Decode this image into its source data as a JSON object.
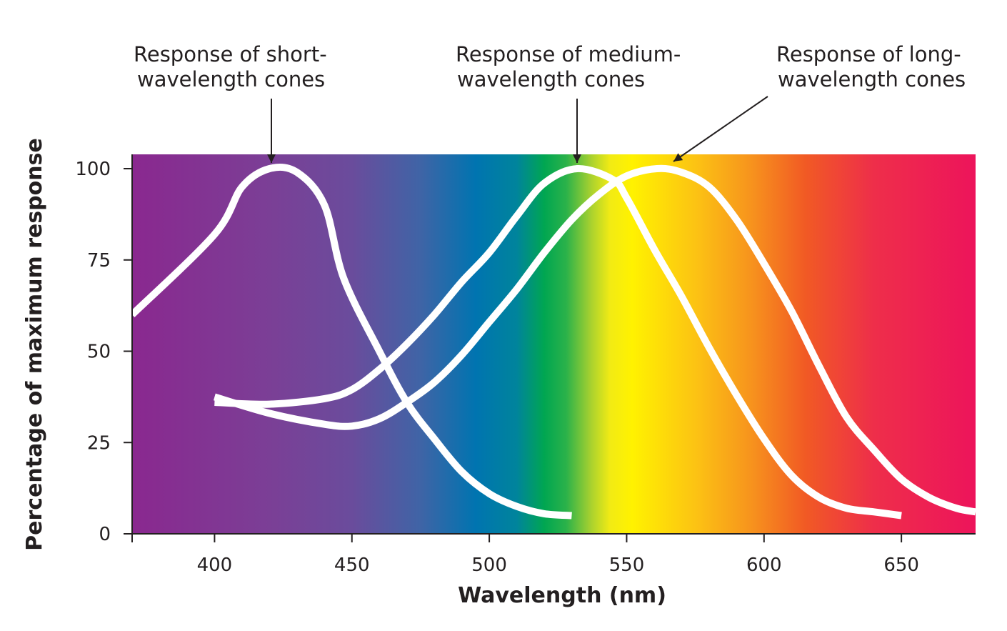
{
  "chart_data": {
    "type": "line",
    "xlabel": "Wavelength (nm)",
    "ylabel": "Percentage of maximum response",
    "xlim": [
      370,
      677
    ],
    "ylim": [
      0,
      100
    ],
    "x_ticks": [
      400,
      450,
      500,
      550,
      600,
      650
    ],
    "y_ticks": [
      0,
      25,
      50,
      75,
      100
    ],
    "grid": false,
    "background": "visible-spectrum color gradient",
    "spectrum_stops": [
      {
        "nm": 370,
        "color": "#8a288f"
      },
      {
        "nm": 420,
        "color": "#7b3f96"
      },
      {
        "nm": 450,
        "color": "#6a4c9c"
      },
      {
        "nm": 475,
        "color": "#3f64a6"
      },
      {
        "nm": 495,
        "color": "#0074b0"
      },
      {
        "nm": 510,
        "color": "#00849c"
      },
      {
        "nm": 520,
        "color": "#00a651"
      },
      {
        "nm": 528,
        "color": "#2bb24a"
      },
      {
        "nm": 537,
        "color": "#a8d12f"
      },
      {
        "nm": 544,
        "color": "#f2eb14"
      },
      {
        "nm": 552,
        "color": "#fff200"
      },
      {
        "nm": 575,
        "color": "#fcc313"
      },
      {
        "nm": 595,
        "color": "#f7941d"
      },
      {
        "nm": 615,
        "color": "#f15a24"
      },
      {
        "nm": 640,
        "color": "#ee2e4a"
      },
      {
        "nm": 677,
        "color": "#ed145b"
      }
    ],
    "series": [
      {
        "name": "Short-wavelength cones",
        "label_lines": [
          "Response of short-",
          "wavelength cones"
        ],
        "peak_nm": 420,
        "points": [
          [
            370,
            60
          ],
          [
            400,
            82
          ],
          [
            410,
            95
          ],
          [
            420,
            100
          ],
          [
            430,
            99
          ],
          [
            440,
            90
          ],
          [
            447,
            70
          ],
          [
            460,
            50
          ],
          [
            470,
            36
          ],
          [
            480,
            26
          ],
          [
            490,
            17
          ],
          [
            500,
            11
          ],
          [
            510,
            7.5
          ],
          [
            520,
            5.5
          ],
          [
            530,
            5
          ]
        ]
      },
      {
        "name": "Medium-wavelength cones",
        "label_lines": [
          "Response of medium-",
          "wavelength cones"
        ],
        "peak_nm": 532,
        "points": [
          [
            400,
            36
          ],
          [
            420,
            35.5
          ],
          [
            440,
            37
          ],
          [
            450,
            39.5
          ],
          [
            460,
            45
          ],
          [
            470,
            52
          ],
          [
            480,
            60
          ],
          [
            490,
            69
          ],
          [
            500,
            77
          ],
          [
            510,
            87
          ],
          [
            520,
            96
          ],
          [
            532,
            100
          ],
          [
            545,
            97
          ],
          [
            550,
            92
          ],
          [
            560,
            78
          ],
          [
            570,
            65
          ],
          [
            580,
            51
          ],
          [
            590,
            38
          ],
          [
            600,
            26
          ],
          [
            610,
            16
          ],
          [
            620,
            10
          ],
          [
            630,
            7
          ],
          [
            640,
            6
          ],
          [
            650,
            5
          ]
        ]
      },
      {
        "name": "Long-wavelength cones",
        "label_lines": [
          "Response of long-",
          "wavelength cones"
        ],
        "peak_nm": 561,
        "points": [
          [
            400,
            37.5
          ],
          [
            420,
            33
          ],
          [
            440,
            30
          ],
          [
            450,
            29.5
          ],
          [
            460,
            31.5
          ],
          [
            470,
            36
          ],
          [
            480,
            41.5
          ],
          [
            490,
            49
          ],
          [
            500,
            58
          ],
          [
            510,
            67
          ],
          [
            520,
            77
          ],
          [
            530,
            86
          ],
          [
            540,
            93
          ],
          [
            550,
            98
          ],
          [
            561,
            100
          ],
          [
            570,
            99
          ],
          [
            580,
            95
          ],
          [
            590,
            86
          ],
          [
            600,
            74
          ],
          [
            610,
            61
          ],
          [
            620,
            46
          ],
          [
            630,
            32
          ],
          [
            640,
            23
          ],
          [
            650,
            15
          ],
          [
            660,
            10
          ],
          [
            670,
            7
          ],
          [
            677,
            6
          ]
        ]
      }
    ]
  }
}
